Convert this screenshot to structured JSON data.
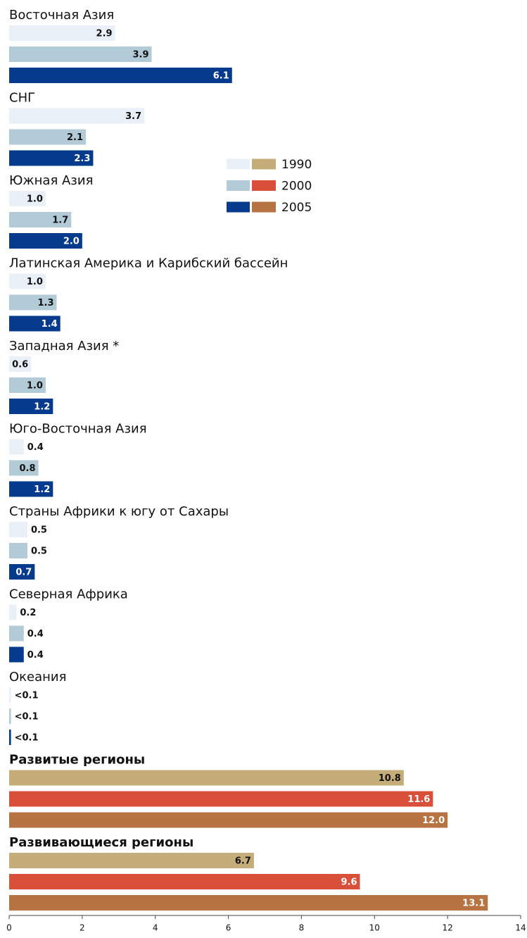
{
  "chart_data": {
    "type": "bar",
    "orientation": "horizontal",
    "categories": [
      "Восточная  Азия",
      "СНГ",
      "Южная Азия",
      "Латинская Америка и Карибский бассейн",
      "Западная Азия *",
      "Юго-Восточная Азия",
      "Страны Африки к югу от Сахары",
      "Северная Африка",
      "Океания",
      "Развитые регионы",
      "Развивающиеся регионы"
    ],
    "series": [
      {
        "name": "1990",
        "colors": [
          "#e9f0f8",
          "#e9f0f8",
          "#e9f0f8",
          "#e9f0f8",
          "#e9f0f8",
          "#e9f0f8",
          "#e9f0f8",
          "#e9f0f8",
          "#e9f0f8",
          "#c4ad78",
          "#c4ad78"
        ],
        "values": [
          2.9,
          3.7,
          1.0,
          1.0,
          0.6,
          0.4,
          0.5,
          0.2,
          0.05,
          10.8,
          6.7
        ],
        "value_labels": [
          "2.9",
          "3.7",
          "1.0",
          "1.0",
          "0.6",
          "0.4",
          "0.5",
          "0.2",
          "<0.1",
          "10.8",
          "6.7"
        ]
      },
      {
        "name": "2000",
        "colors": [
          "#b3cad7",
          "#b3cad7",
          "#b3cad7",
          "#b3cad7",
          "#b3cad7",
          "#b3cad7",
          "#b3cad7",
          "#b3cad7",
          "#b3cad7",
          "#d9503a",
          "#d9503a"
        ],
        "values": [
          3.9,
          2.1,
          1.7,
          1.3,
          1.0,
          0.8,
          0.5,
          0.4,
          0.05,
          11.6,
          9.6
        ],
        "value_labels": [
          "3.9",
          "2.1",
          "1.7",
          "1.3",
          "1.0",
          "0.8",
          "0.5",
          "0.4",
          "<0.1",
          "11.6",
          "9.6"
        ]
      },
      {
        "name": "2005",
        "colors": [
          "#063a8c",
          "#063a8c",
          "#063a8c",
          "#063a8c",
          "#063a8c",
          "#063a8c",
          "#063a8c",
          "#063a8c",
          "#063a8c",
          "#b87343",
          "#b87343"
        ],
        "values": [
          6.1,
          2.3,
          2.0,
          1.4,
          1.2,
          1.2,
          0.7,
          0.4,
          0.05,
          12.0,
          13.1
        ],
        "value_labels": [
          "6.1",
          "2.3",
          "2.0",
          "1.4",
          "1.2",
          "1.2",
          "0.7",
          "0.4",
          "<0.1",
          "12.0",
          "13.1"
        ]
      }
    ],
    "xlim": [
      0,
      14
    ],
    "xticks": [
      0,
      2,
      4,
      6,
      8,
      10,
      12,
      14
    ],
    "legend": "center-right"
  }
}
